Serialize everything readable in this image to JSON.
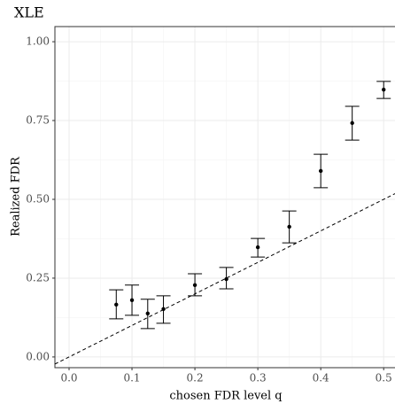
{
  "chart_data": {
    "type": "errorbar",
    "title": "XLE",
    "xlabel": "chosen FDR level q",
    "ylabel": "Realized FDR",
    "x": [
      0.075,
      0.1,
      0.125,
      0.15,
      0.2,
      0.25,
      0.3,
      0.35,
      0.4,
      0.45,
      0.5
    ],
    "values": [
      0.166,
      0.18,
      0.138,
      0.152,
      0.228,
      0.247,
      0.348,
      0.413,
      0.59,
      0.742,
      0.848
    ],
    "lower": [
      0.121,
      0.132,
      0.09,
      0.107,
      0.194,
      0.216,
      0.317,
      0.362,
      0.537,
      0.688,
      0.82
    ],
    "upper": [
      0.213,
      0.228,
      0.183,
      0.194,
      0.264,
      0.284,
      0.376,
      0.463,
      0.643,
      0.795,
      0.874
    ],
    "color": "#000000",
    "xlim": [
      -0.0225,
      0.518
    ],
    "ylim": [
      -0.034,
      1.048
    ],
    "xticks": [
      {
        "value": 0,
        "label": "0.0"
      },
      0.1,
      0.2,
      0.3,
      0.4,
      0.5
    ],
    "yticks": [
      {
        "value": 0,
        "label": "0.00"
      },
      0.25,
      {
        "value": 0.5,
        "label": "0.50"
      },
      0.75,
      {
        "value": 1,
        "label": "1.00"
      }
    ],
    "grid": true,
    "identity_line": true
  }
}
